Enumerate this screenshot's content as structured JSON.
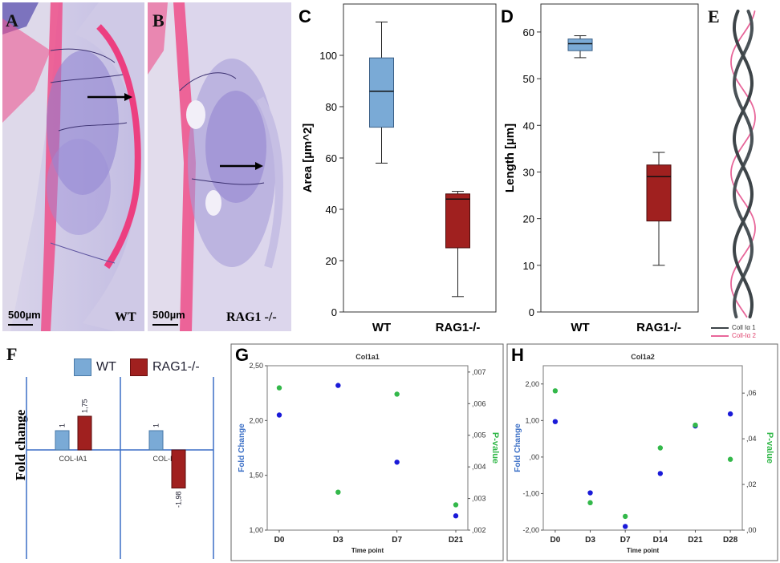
{
  "colors": {
    "wt": "#7aaad6",
    "rag": "#a0201f",
    "pink": "#e8669a",
    "tissue": "#b8b2de",
    "blue_series": "#1a1ad8",
    "green_series": "#33b84a",
    "axis_blue": "#3b6fc6"
  },
  "panel_a": {
    "letter": "A",
    "scale": "500µm",
    "group": "WT"
  },
  "panel_b": {
    "letter": "B",
    "scale": "500µm",
    "group": "RAG1 -/-"
  },
  "panel_e": {
    "letter": "E",
    "legend": [
      "Coll Iα 1",
      "Coll-Iα 2"
    ]
  },
  "panel_f": {
    "letter": "F",
    "ylabel": "Fold change",
    "legend": [
      "WT",
      "RAG1-/-"
    ]
  },
  "chart_data": [
    {
      "id": "C",
      "type": "box",
      "letter": "C",
      "ylabel": "Area [µm^2]",
      "categories": [
        "WT",
        "RAG1-/-"
      ],
      "ylim": [
        0,
        120
      ],
      "yticks": [
        0,
        20,
        40,
        60,
        80,
        100
      ],
      "boxes": [
        {
          "min": 58,
          "q1": 72,
          "median": 86,
          "q3": 99,
          "max": 113
        },
        {
          "min": 6,
          "q1": 25,
          "median": 44,
          "q3": 46,
          "max": 47
        }
      ]
    },
    {
      "id": "D",
      "type": "box",
      "letter": "D",
      "ylabel": "Length [µm]",
      "categories": [
        "WT",
        "RAG1-/-"
      ],
      "ylim": [
        0,
        66
      ],
      "yticks": [
        0,
        10,
        20,
        30,
        40,
        50,
        60
      ],
      "boxes": [
        {
          "min": 54.5,
          "q1": 56,
          "median": 57.5,
          "q3": 58.5,
          "max": 59.2
        },
        {
          "min": 10,
          "q1": 19.5,
          "median": 29,
          "q3": 31.5,
          "max": 34.2
        }
      ]
    },
    {
      "id": "F",
      "type": "bar",
      "groups": [
        "COL-IA1",
        "COL-IA2"
      ],
      "series": [
        {
          "name": "WT",
          "values": [
            1,
            1
          ]
        },
        {
          "name": "RAG1-/-",
          "values": [
            1.75,
            -1.98
          ]
        }
      ],
      "value_labels": [
        [
          "1",
          "1,75"
        ],
        [
          "1",
          "-1,98"
        ]
      ],
      "ylim": [
        -2.3,
        2.2
      ]
    },
    {
      "id": "G",
      "type": "scatter",
      "letter": "G",
      "title": "Col1a1",
      "xlabel": "Time point",
      "ylabel": "Fold Change",
      "y2label": "P-value",
      "categories": [
        "D0",
        "D3",
        "D7",
        "D21"
      ],
      "ylim": [
        1.0,
        2.5
      ],
      "yticks": [
        "1,00",
        "1,50",
        "2,00",
        "2,50"
      ],
      "y2lim": [
        0.002,
        0.0072
      ],
      "y2ticks": [
        ",002",
        ",003",
        ",004",
        ",005",
        ",006",
        ",007"
      ],
      "series": [
        {
          "name": "Fold Change",
          "axis": "left",
          "values": [
            2.05,
            2.32,
            1.62,
            1.13
          ]
        },
        {
          "name": "P-value",
          "axis": "right",
          "values": [
            0.0065,
            0.0032,
            0.0063,
            0.0028
          ]
        }
      ]
    },
    {
      "id": "H",
      "type": "scatter",
      "letter": "H",
      "title": "Col1a2",
      "xlabel": "Time point",
      "ylabel": "Fold Change",
      "y2label": "P-value",
      "categories": [
        "D0",
        "D3",
        "D7",
        "D14",
        "D21",
        "D28"
      ],
      "ylim": [
        -2.0,
        2.5
      ],
      "yticks": [
        "-2,00",
        "-1,00",
        ",00",
        "1,00",
        "2,00"
      ],
      "y2lim": [
        0,
        0.072
      ],
      "y2ticks": [
        ",00",
        ",02",
        ",04",
        ",06"
      ],
      "series": [
        {
          "name": "Fold Change",
          "axis": "left",
          "values": [
            0.97,
            -0.98,
            -1.9,
            -0.45,
            0.85,
            1.18
          ]
        },
        {
          "name": "P-value",
          "axis": "right",
          "values": [
            0.061,
            0.012,
            0.006,
            0.036,
            0.046,
            0.031
          ]
        }
      ]
    }
  ]
}
